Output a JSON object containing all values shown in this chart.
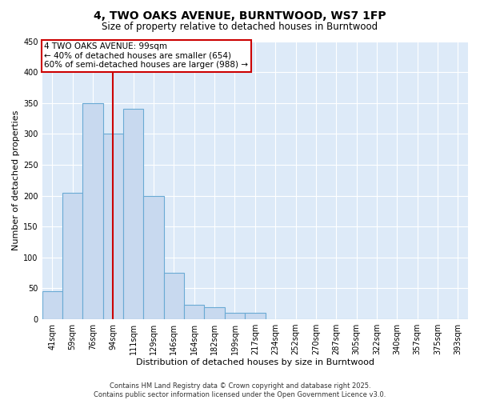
{
  "title": "4, TWO OAKS AVENUE, BURNTWOOD, WS7 1FP",
  "subtitle": "Size of property relative to detached houses in Burntwood",
  "xlabel": "Distribution of detached houses by size in Burntwood",
  "ylabel": "Number of detached properties",
  "bin_labels": [
    "41sqm",
    "59sqm",
    "76sqm",
    "94sqm",
    "111sqm",
    "129sqm",
    "146sqm",
    "164sqm",
    "182sqm",
    "199sqm",
    "217sqm",
    "234sqm",
    "252sqm",
    "270sqm",
    "287sqm",
    "305sqm",
    "322sqm",
    "340sqm",
    "357sqm",
    "375sqm",
    "393sqm"
  ],
  "bar_values": [
    45,
    205,
    350,
    300,
    340,
    200,
    75,
    23,
    20,
    10,
    10,
    0,
    0,
    0,
    0,
    0,
    0,
    0,
    0,
    0,
    0
  ],
  "bar_color": "#c8d9ef",
  "bar_edge_color": "#6aaad4",
  "bar_edge_width": 0.8,
  "vline_x": 3.5,
  "vline_color": "#cc0000",
  "ylim": [
    0,
    450
  ],
  "yticks": [
    0,
    50,
    100,
    150,
    200,
    250,
    300,
    350,
    400,
    450
  ],
  "annotation_box_text_line1": "4 TWO OAKS AVENUE: 99sqm",
  "annotation_box_text_line2": "← 40% of detached houses are smaller (654)",
  "annotation_box_text_line3": "60% of semi-detached houses are larger (988) →",
  "annotation_box_edgecolor": "#cc0000",
  "annotation_box_facecolor": "#ffffff",
  "footer_line1": "Contains HM Land Registry data © Crown copyright and database right 2025.",
  "footer_line2": "Contains public sector information licensed under the Open Government Licence v3.0.",
  "bg_color": "#ddeaf8",
  "title_fontsize": 10,
  "subtitle_fontsize": 8.5,
  "axis_label_fontsize": 8,
  "tick_fontsize": 7,
  "annotation_fontsize": 7.5,
  "footer_fontsize": 6
}
